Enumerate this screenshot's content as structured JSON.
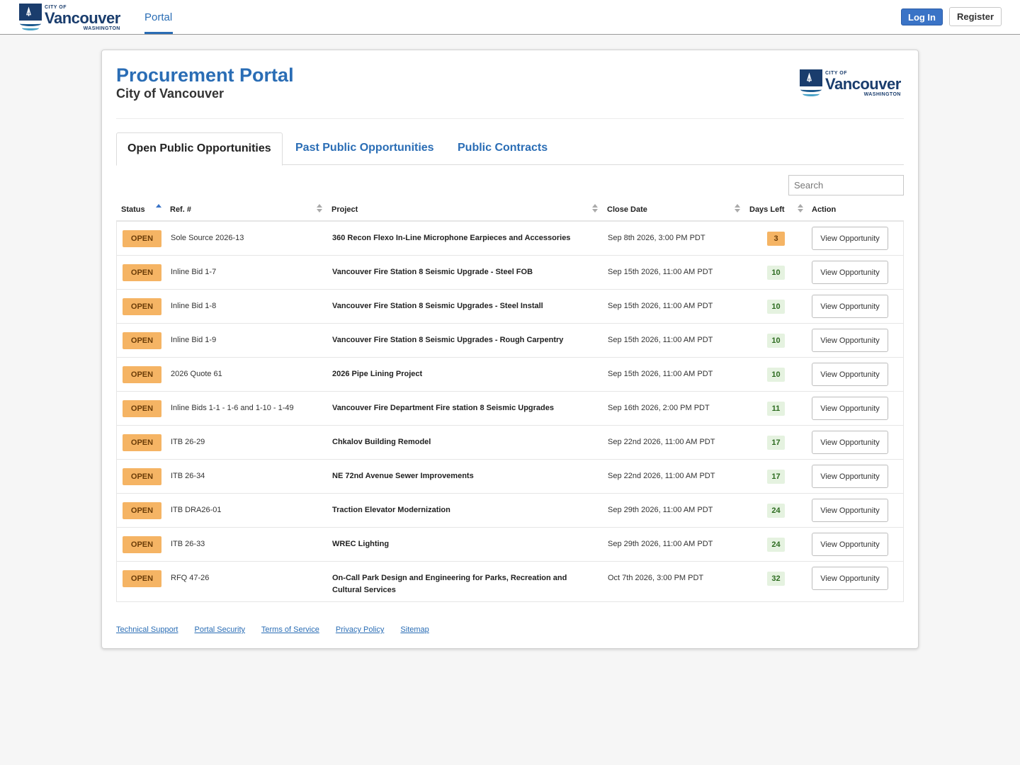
{
  "brand": {
    "city_of": "CITY OF",
    "name": "Vancouver",
    "state": "WASHINGTON"
  },
  "nav": {
    "portal": "Portal",
    "login": "Log In",
    "register": "Register"
  },
  "header": {
    "title": "Procurement Portal",
    "subtitle": "City of Vancouver"
  },
  "tabs": [
    {
      "label": "Open Public Opportunities"
    },
    {
      "label": "Past Public Opportunities"
    },
    {
      "label": "Public Contracts"
    }
  ],
  "search": {
    "placeholder": "Search",
    "value": ""
  },
  "columns": {
    "status": "Status",
    "ref": "Ref. #",
    "project": "Project",
    "close_date": "Close Date",
    "days_left": "Days Left",
    "action": "Action"
  },
  "rows": [
    {
      "status": "OPEN",
      "ref": "Sole Source 2026-13",
      "project": "360 Recon Flexo In-Line Microphone Earpieces and Accessories",
      "close_date": "Sep 8th 2026, 3:00 PM PDT",
      "days_left": "3",
      "action": "View Opportunity"
    },
    {
      "status": "OPEN",
      "ref": "Inline Bid 1-7",
      "project": "Vancouver Fire Station 8 Seismic Upgrade - Steel FOB",
      "close_date": "Sep 15th 2026, 11:00 AM PDT",
      "days_left": "10",
      "action": "View Opportunity"
    },
    {
      "status": "OPEN",
      "ref": "Inline Bid 1-8",
      "project": "Vancouver Fire Station 8 Seismic Upgrades - Steel Install",
      "close_date": "Sep 15th 2026, 11:00 AM PDT",
      "days_left": "10",
      "action": "View Opportunity"
    },
    {
      "status": "OPEN",
      "ref": "Inline Bid 1-9",
      "project": "Vancouver Fire Station 8 Seismic Upgrades - Rough Carpentry",
      "close_date": "Sep 15th 2026, 11:00 AM PDT",
      "days_left": "10",
      "action": "View Opportunity"
    },
    {
      "status": "OPEN",
      "ref": "2026 Quote 61",
      "project": "2026 Pipe Lining Project",
      "close_date": "Sep 15th 2026, 11:00 AM PDT",
      "days_left": "10",
      "action": "View Opportunity"
    },
    {
      "status": "OPEN",
      "ref": "Inline Bids 1-1 - 1-6 and 1-10 - 1-49",
      "project": "Vancouver Fire Department Fire station 8 Seismic Upgrades",
      "close_date": "Sep 16th 2026, 2:00 PM PDT",
      "days_left": "11",
      "action": "View Opportunity"
    },
    {
      "status": "OPEN",
      "ref": "ITB 26-29",
      "project": "Chkalov Building Remodel",
      "close_date": "Sep 22nd 2026, 11:00 AM PDT",
      "days_left": "17",
      "action": "View Opportunity"
    },
    {
      "status": "OPEN",
      "ref": "ITB 26-34",
      "project": "NE 72nd Avenue Sewer Improvements",
      "close_date": "Sep 22nd 2026, 11:00 AM PDT",
      "days_left": "17",
      "action": "View Opportunity"
    },
    {
      "status": "OPEN",
      "ref": "ITB DRA26-01",
      "project": "Traction Elevator Modernization",
      "close_date": "Sep 29th 2026, 11:00 AM PDT",
      "days_left": "24",
      "action": "View Opportunity"
    },
    {
      "status": "OPEN",
      "ref": "ITB 26-33",
      "project": "WREC Lighting",
      "close_date": "Sep 29th 2026, 11:00 AM PDT",
      "days_left": "24",
      "action": "View Opportunity"
    },
    {
      "status": "OPEN",
      "ref": "RFQ 47-26",
      "project": "On-Call Park Design and Engineering for Parks, Recreation and Cultural Services",
      "close_date": "Oct 7th 2026, 3:00 PM PDT",
      "days_left": "32",
      "action": "View Opportunity"
    }
  ],
  "footer": [
    {
      "label": "Technical Support"
    },
    {
      "label": "Portal Security"
    },
    {
      "label": "Terms of Service"
    },
    {
      "label": "Privacy Policy"
    },
    {
      "label": "Sitemap"
    }
  ],
  "colors": {
    "accent": "#2a6db5",
    "login_bg": "#3a73c6",
    "open_badge": "#f5b464",
    "days_badge": "#e5f2e0",
    "brand_navy": "#1a3d6d"
  }
}
